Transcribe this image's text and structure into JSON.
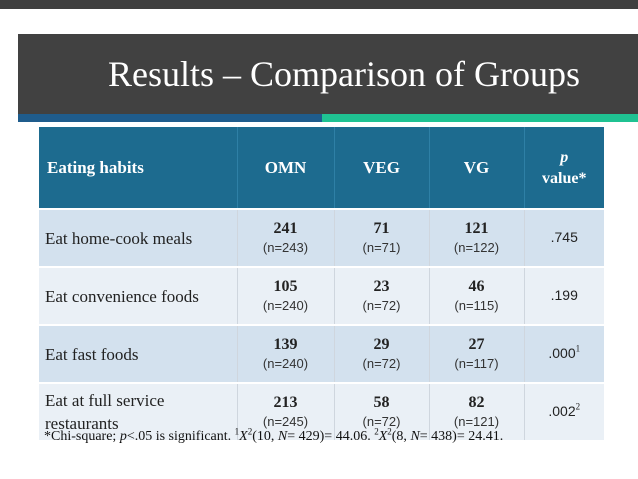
{
  "slide": {
    "title": "Results – Comparison of Groups",
    "colors": {
      "title_bar": "#414141",
      "accent_left": "#1f5c8c",
      "accent_right": "#1fc292",
      "table_header": "#1d6b8f",
      "row_dark": "#d3e1ee",
      "row_light": "#eaf0f6"
    }
  },
  "table": {
    "headers": {
      "habits": "Eating habits",
      "omn": "OMN",
      "veg": "VEG",
      "vg": "VG",
      "p_symbol": "p",
      "p_label": "value*"
    },
    "rows": [
      {
        "habit": "Eat home-cook meals",
        "omn": {
          "count": "241",
          "n": "(n=243)"
        },
        "veg": {
          "count": "71",
          "n": "(n=71)"
        },
        "vg": {
          "count": "121",
          "n": "(n=122)"
        },
        "p": ".745",
        "p_sup": ""
      },
      {
        "habit": "Eat convenience foods",
        "omn": {
          "count": "105",
          "n": "(n=240)"
        },
        "veg": {
          "count": "23",
          "n": "(n=72)"
        },
        "vg": {
          "count": "46",
          "n": "(n=115)"
        },
        "p": ".199",
        "p_sup": ""
      },
      {
        "habit": "Eat fast foods",
        "omn": {
          "count": "139",
          "n": "(n=240)"
        },
        "veg": {
          "count": "29",
          "n": "(n=72)"
        },
        "vg": {
          "count": "27",
          "n": "(n=117)"
        },
        "p": ".000",
        "p_sup": "1"
      },
      {
        "habit": "Eat at full service restaurants",
        "omn": {
          "count": "213",
          "n": "(n=245)"
        },
        "veg": {
          "count": "58",
          "n": "(n=72)"
        },
        "vg": {
          "count": "82",
          "n": "(n=121)"
        },
        "p": ".002",
        "p_sup": "2"
      }
    ]
  },
  "footnote": {
    "prefix": "*Chi-square; ",
    "p_symbol": "p",
    "sig_text": "<.05 is significant. ",
    "ref1": "1",
    "x1": "X",
    "exp1": "2",
    "open1": "(10, ",
    "n1_symbol": "N",
    "rest1": "= 429)= 44.06. ",
    "ref2": "2",
    "x2": "X",
    "exp2": "2",
    "open2": "(8, ",
    "n2_symbol": "N",
    "rest2": "= 438)= 24.41."
  }
}
